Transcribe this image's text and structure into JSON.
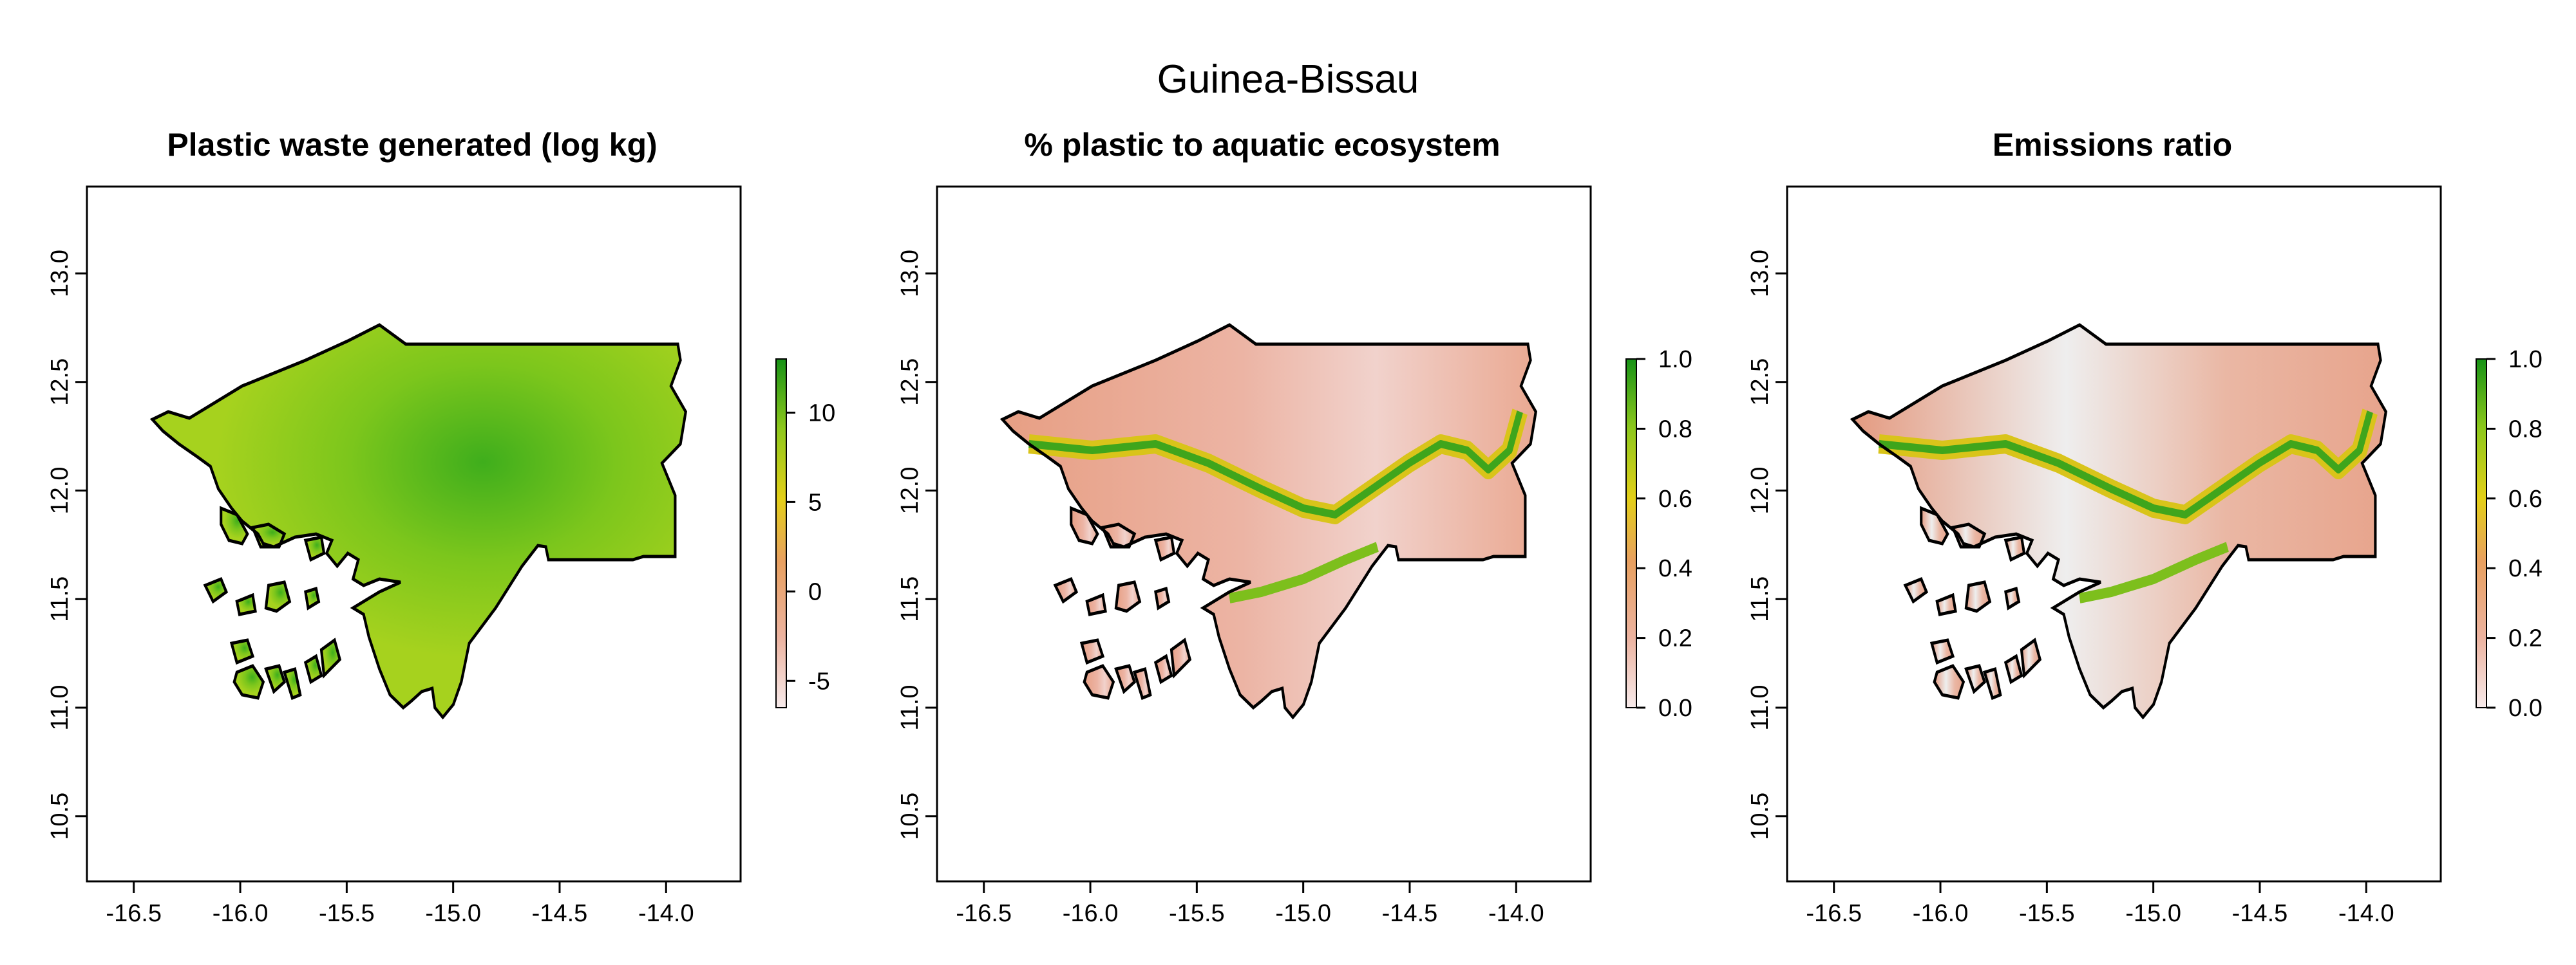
{
  "figure_title": "Guinea-Bissau",
  "x_ticks": [
    "-16.5",
    "-16.0",
    "-15.5",
    "-15.0",
    "-14.5",
    "-14.0"
  ],
  "y_ticks": [
    "10.5",
    "11.0",
    "11.5",
    "12.0",
    "12.5",
    "13.0"
  ],
  "panels": [
    {
      "title": "Plastic waste generated (log kg)",
      "legend_ticks": [
        "-5",
        "0",
        "5",
        "10"
      ],
      "legend_range": [
        -6.5,
        13
      ],
      "colors": {
        "low": "#f3d6d6",
        "mid": "#f0a06e",
        "high": "#e6c81e",
        "top": "#1aa01a",
        "fill": "#8fcf1e"
      }
    },
    {
      "title": "% plastic to aquatic ecosystem",
      "legend_ticks": [
        "0.0",
        "0.2",
        "0.4",
        "0.6",
        "0.8",
        "1.0"
      ],
      "legend_range": [
        0,
        1
      ],
      "colors": {
        "low": "#f3d6d6",
        "mid": "#e9a38a",
        "high": "#e6c81e",
        "top": "#1aa01a",
        "fill": "#e9a890"
      }
    },
    {
      "title": "Emissions ratio",
      "legend_ticks": [
        "0.0",
        "0.2",
        "0.4",
        "0.6",
        "0.8",
        "1.0"
      ],
      "legend_range": [
        0,
        1
      ],
      "colors": {
        "low": "#f3d6d6",
        "mid": "#e9a38a",
        "high": "#e6c81e",
        "top": "#1aa01a",
        "fill": "#e6a48e"
      }
    }
  ]
}
